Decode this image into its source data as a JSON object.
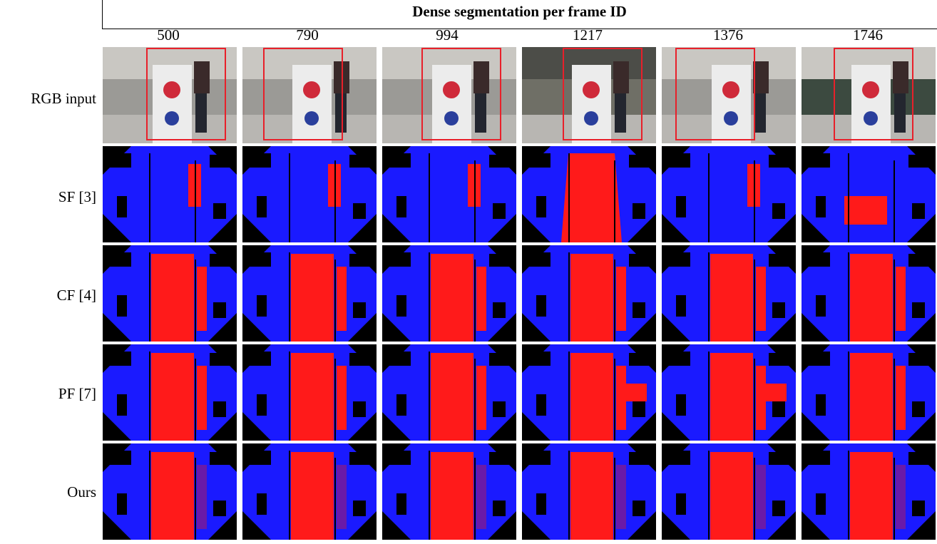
{
  "figure": {
    "title": "Dense segmentation per frame ID",
    "frame_ids": [
      "500",
      "790",
      "994",
      "1217",
      "1376",
      "1746"
    ],
    "row_labels": [
      "RGB input",
      "SF [3]",
      "CF [4]",
      "PF [7]",
      "Ours"
    ]
  },
  "colors": {
    "background": "#000000",
    "class_a": "#ff1a1a",
    "class_b": "#1a1aff",
    "mixed": "#6a1aa8",
    "bbox": "#e8202a"
  }
}
